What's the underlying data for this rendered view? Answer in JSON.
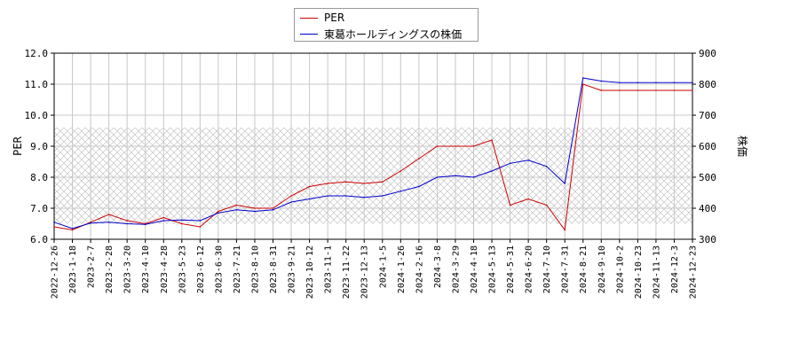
{
  "chart_data": {
    "type": "line",
    "legend_position": "top-center",
    "grid": true,
    "x_ticks": [
      "2022-12-26",
      "2023-1-18",
      "2023-2-7",
      "2023-2-28",
      "2023-3-20",
      "2023-4-10",
      "2023-4-28",
      "2023-5-23",
      "2023-6-12",
      "2023-6-30",
      "2023-7-21",
      "2023-8-10",
      "2023-8-31",
      "2023-9-21",
      "2023-10-12",
      "2023-11-1",
      "2023-11-22",
      "2023-12-13",
      "2024-1-5",
      "2024-1-26",
      "2024-2-16",
      "2024-3-8",
      "2024-3-29",
      "2024-4-18",
      "2024-5-13",
      "2024-5-31",
      "2024-6-20",
      "2024-7-10",
      "2024-7-31",
      "2024-8-21",
      "2024-9-10",
      "2024-10-2",
      "2024-10-23",
      "2024-11-13",
      "2024-12-3",
      "2024-12-23"
    ],
    "y_left": {
      "label": "PER",
      "range": [
        6.0,
        12.0
      ],
      "ticks": [
        "6.0",
        "7.0",
        "8.0",
        "9.0",
        "10.0",
        "11.0",
        "12.0"
      ]
    },
    "y_right": {
      "label": "株価",
      "range": [
        300,
        900
      ],
      "ticks": [
        "300",
        "400",
        "500",
        "600",
        "700",
        "800",
        "900"
      ]
    },
    "hatched_band": {
      "y_right_from": 350,
      "y_right_to": 660
    },
    "series": [
      {
        "name": "PER",
        "color": "#cc0000",
        "axis": "left",
        "points": [
          [
            "2022-12-26",
            6.4
          ],
          [
            "2023-1-18",
            6.3
          ],
          [
            "2023-2-7",
            6.55
          ],
          [
            "2023-2-28",
            6.8
          ],
          [
            "2023-3-20",
            6.6
          ],
          [
            "2023-4-10",
            6.5
          ],
          [
            "2023-4-28",
            6.7
          ],
          [
            "2023-5-23",
            6.5
          ],
          [
            "2023-6-12",
            6.4
          ],
          [
            "2023-6-30",
            6.9
          ],
          [
            "2023-7-21",
            7.1
          ],
          [
            "2023-8-10",
            7.0
          ],
          [
            "2023-8-31",
            7.0
          ],
          [
            "2023-9-21",
            7.4
          ],
          [
            "2023-10-12",
            7.7
          ],
          [
            "2023-11-1",
            7.8
          ],
          [
            "2023-11-22",
            7.85
          ],
          [
            "2023-12-13",
            7.8
          ],
          [
            "2024-1-5",
            7.85
          ],
          [
            "2024-1-26",
            8.2
          ],
          [
            "2024-2-16",
            8.6
          ],
          [
            "2024-3-8",
            9.0
          ],
          [
            "2024-3-29",
            9.0
          ],
          [
            "2024-4-18",
            9.0
          ],
          [
            "2024-5-13",
            9.2
          ],
          [
            "2024-5-31",
            7.1
          ],
          [
            "2024-6-20",
            7.3
          ],
          [
            "2024-7-10",
            7.1
          ],
          [
            "2024-7-31",
            6.3
          ],
          [
            "2024-8-21",
            11.0
          ],
          [
            "2024-9-10",
            10.8
          ],
          [
            "2024-10-2",
            10.8
          ],
          [
            "2024-10-23",
            10.8
          ],
          [
            "2024-11-13",
            10.8
          ],
          [
            "2024-12-3",
            10.8
          ],
          [
            "2024-12-23",
            10.8
          ]
        ]
      },
      {
        "name": "東葛ホールディングスの株価",
        "color": "#0000cc",
        "axis": "right",
        "points": [
          [
            "2022-12-26",
            355
          ],
          [
            "2023-1-18",
            335
          ],
          [
            "2023-2-7",
            352
          ],
          [
            "2023-2-28",
            355
          ],
          [
            "2023-3-20",
            350
          ],
          [
            "2023-4-10",
            348
          ],
          [
            "2023-4-28",
            360
          ],
          [
            "2023-5-23",
            362
          ],
          [
            "2023-6-12",
            360
          ],
          [
            "2023-6-30",
            385
          ],
          [
            "2023-7-21",
            395
          ],
          [
            "2023-8-10",
            390
          ],
          [
            "2023-8-31",
            395
          ],
          [
            "2023-9-21",
            420
          ],
          [
            "2023-10-12",
            430
          ],
          [
            "2023-11-1",
            440
          ],
          [
            "2023-11-22",
            440
          ],
          [
            "2023-12-13",
            435
          ],
          [
            "2024-1-5",
            440
          ],
          [
            "2024-1-26",
            455
          ],
          [
            "2024-2-16",
            470
          ],
          [
            "2024-3-8",
            500
          ],
          [
            "2024-3-29",
            505
          ],
          [
            "2024-4-18",
            500
          ],
          [
            "2024-5-13",
            520
          ],
          [
            "2024-5-31",
            545
          ],
          [
            "2024-6-20",
            555
          ],
          [
            "2024-7-10",
            535
          ],
          [
            "2024-7-31",
            480
          ],
          [
            "2024-8-21",
            820
          ],
          [
            "2024-9-10",
            810
          ],
          [
            "2024-10-2",
            805
          ],
          [
            "2024-10-23",
            805
          ],
          [
            "2024-11-13",
            805
          ],
          [
            "2024-12-3",
            805
          ],
          [
            "2024-12-23",
            805
          ]
        ]
      }
    ]
  }
}
